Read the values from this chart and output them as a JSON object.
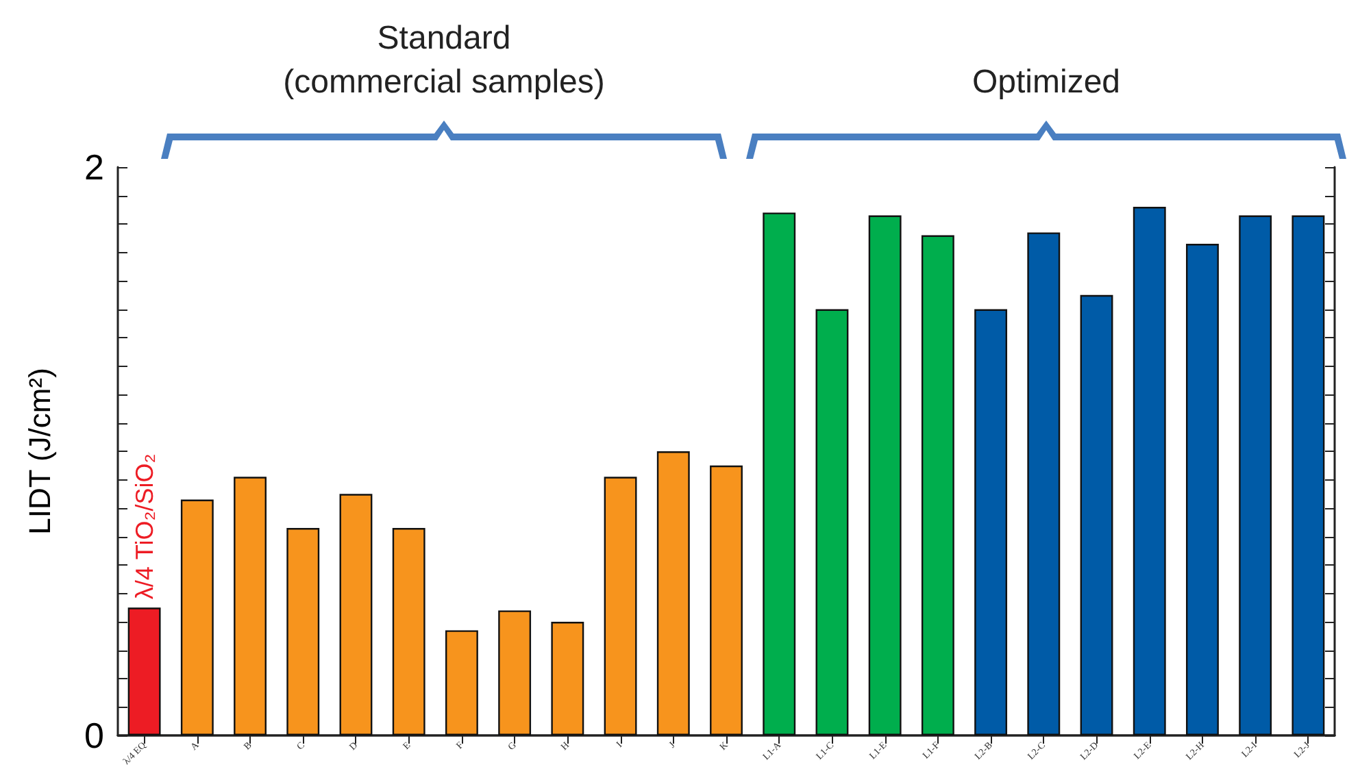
{
  "chart_data": {
    "type": "bar",
    "ylabel": "LIDT (J/cm²)",
    "categories": [
      "λ/4 EQ",
      "A",
      "B",
      "C",
      "D",
      "E",
      "F",
      "G",
      "H",
      "I",
      "J",
      "K",
      "L1-A",
      "L1-C",
      "L1-E",
      "L1-F",
      "L2-B",
      "L2-C",
      "L2-D",
      "L2-E",
      "L2-H",
      "L2-I",
      "L2-J"
    ],
    "values": [
      0.45,
      0.83,
      0.91,
      0.73,
      0.85,
      0.73,
      0.37,
      0.44,
      0.4,
      0.91,
      1.0,
      0.95,
      1.84,
      1.5,
      1.83,
      1.76,
      1.5,
      1.77,
      1.55,
      1.86,
      1.73,
      1.83,
      1.83
    ],
    "colors": [
      "#ed1c24",
      "#f7941d",
      "#f7941d",
      "#f7941d",
      "#f7941d",
      "#f7941d",
      "#f7941d",
      "#f7941d",
      "#f7941d",
      "#f7941d",
      "#f7941d",
      "#f7941d",
      "#00ae4d",
      "#00ae4d",
      "#00ae4d",
      "#00ae4d",
      "#005ba7",
      "#005ba7",
      "#005ba7",
      "#005ba7",
      "#005ba7",
      "#005ba7",
      "#005ba7"
    ],
    "ylim": [
      0,
      2
    ],
    "yticks": [
      0,
      {
        "value": 0.1,
        "label": null
      },
      {
        "value": 0.2,
        "label": null
      },
      {
        "value": 0.3,
        "label": null
      },
      {
        "value": 0.4,
        "label": null
      },
      {
        "value": 0.5,
        "label": null
      },
      {
        "value": 0.6,
        "label": null
      },
      {
        "value": 0.7,
        "label": null
      },
      {
        "value": 0.8,
        "label": null
      },
      {
        "value": 0.9,
        "label": null
      },
      {
        "value": 1.0,
        "label": null
      },
      {
        "value": 1.1,
        "label": null
      },
      {
        "value": 1.2,
        "label": null
      },
      {
        "value": 1.3,
        "label": null
      },
      {
        "value": 1.4,
        "label": null
      },
      {
        "value": 1.5,
        "label": null
      },
      {
        "value": 1.6,
        "label": null
      },
      {
        "value": 1.7,
        "label": null
      },
      {
        "value": 1.8,
        "label": null
      },
      {
        "value": 1.9,
        "label": null
      },
      2
    ],
    "annotations": [
      {
        "text": "λ/4 TiO₂/SiO₂",
        "x": "λ/4 EQ",
        "y": 0.45
      },
      "Standard\n(commercial samples)",
      "Optimized"
    ]
  }
}
